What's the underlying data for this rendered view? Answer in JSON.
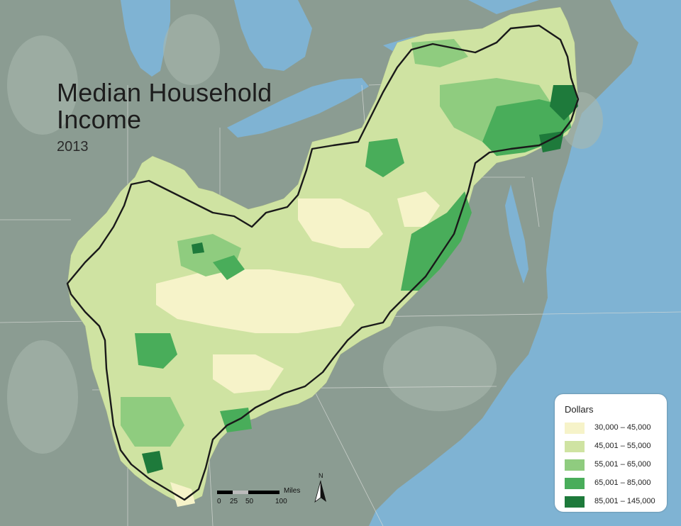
{
  "title": {
    "line1": "Median Household",
    "line2": "Income",
    "year": "2013"
  },
  "legend": {
    "title": "Dollars",
    "items": [
      {
        "label": "30,000 – 45,000",
        "color": "#f6f3c9"
      },
      {
        "label": "45,001 – 55,000",
        "color": "#cfe3a2"
      },
      {
        "label": "55,001 – 65,000",
        "color": "#8fcc7f"
      },
      {
        "label": "65,001 – 85,000",
        "color": "#49ad5a"
      },
      {
        "label": "85,001 – 145,000",
        "color": "#1e7a3b"
      }
    ]
  },
  "scale_bar": {
    "units": "Miles",
    "ticks": [
      "0",
      "25",
      "50",
      "100"
    ]
  },
  "north_arrow": {
    "label": "N"
  },
  "colors": {
    "water": "#7fb3d3",
    "land": "#8b9c92",
    "boundary": "#1a1a1a"
  }
}
